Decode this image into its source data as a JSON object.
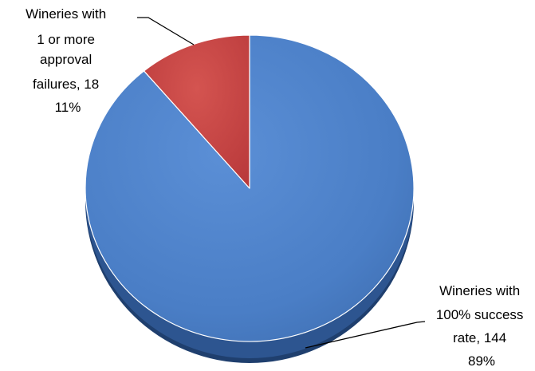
{
  "chart_data": {
    "type": "pie",
    "title": "",
    "style": "3d",
    "slices": [
      {
        "name": "Wineries with 100% success rate",
        "value": 144,
        "percent": "89%",
        "color": "#4A7EC6",
        "label_lines": [
          "Wineries with",
          "100% success",
          "rate, 144",
          "89%"
        ]
      },
      {
        "name": "Wineries with 1 or more approval failures",
        "value": 18,
        "percent": "11%",
        "color": "#C84340",
        "label_lines": [
          "Wineries with",
          "1 or more",
          "approval",
          "failures, 18",
          "11%"
        ]
      }
    ]
  }
}
